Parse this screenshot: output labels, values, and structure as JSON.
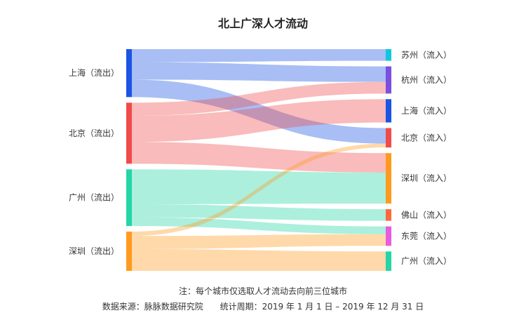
{
  "chart_data": {
    "type": "sankey",
    "title": "北上广深人才流动",
    "sources": [
      {
        "label": "上海（流出）",
        "color": "#1a55e3"
      },
      {
        "label": "北京（流出）",
        "color": "#f04b4b"
      },
      {
        "label": "广州（流出）",
        "color": "#25d5a6"
      },
      {
        "label": "深圳（流出）",
        "color": "#ff9a1f"
      }
    ],
    "targets": [
      {
        "label": "苏州（流入）",
        "color": "#10c7e0"
      },
      {
        "label": "杭州（流入）",
        "color": "#7b4fe0"
      },
      {
        "label": "上海（流入）",
        "color": "#1a55e3"
      },
      {
        "label": "北京（流入）",
        "color": "#f04b4b"
      },
      {
        "label": "深圳（流入）",
        "color": "#ff9a1f"
      },
      {
        "label": "佛山（流入）",
        "color": "#ff6a3d"
      },
      {
        "label": "东莞（流入）",
        "color": "#e85ae0"
      },
      {
        "label": "广州（流入）",
        "color": "#25d5a6"
      }
    ],
    "flows": [
      {
        "source": "上海（流出）",
        "target": "苏州（流入）",
        "value": 3
      },
      {
        "source": "上海（流出）",
        "target": "杭州（流入）",
        "value": 4
      },
      {
        "source": "上海（流出）",
        "target": "北京（流入）",
        "value": 4
      },
      {
        "source": "北京（流出）",
        "target": "杭州（流入）",
        "value": 3
      },
      {
        "source": "北京（流出）",
        "target": "上海（流入）",
        "value": 6
      },
      {
        "source": "北京（流出）",
        "target": "深圳（流入）",
        "value": 5
      },
      {
        "source": "广州（流出）",
        "target": "深圳（流入）",
        "value": 8
      },
      {
        "source": "广州（流出）",
        "target": "佛山（流入）",
        "value": 3
      },
      {
        "source": "广州（流出）",
        "target": "东莞（流入）",
        "value": 2
      },
      {
        "source": "深圳（流出）",
        "target": "北京（流入）",
        "value": 1
      },
      {
        "source": "深圳（流出）",
        "target": "东莞（流入）",
        "value": 3
      },
      {
        "source": "深圳（流出）",
        "target": "广州（流入）",
        "value": 5
      }
    ]
  },
  "footnote": "注：每个城市仅选取人才流动去向前三位城市",
  "source_text": "数据来源：脉脉数据研究院",
  "period_text": "统计周期：2019 年 1 月 1 日 – 2019 年 12 月 31 日"
}
